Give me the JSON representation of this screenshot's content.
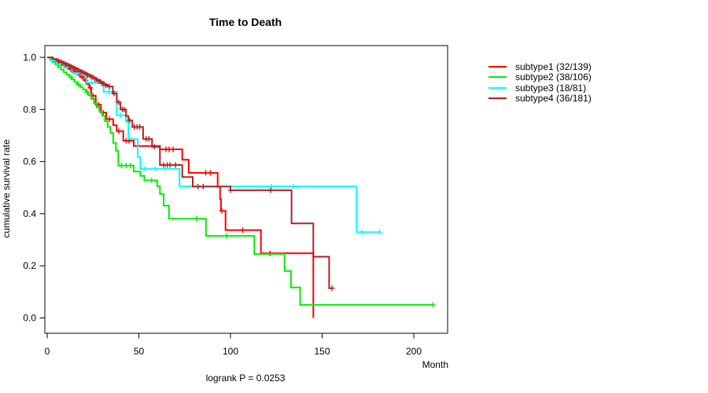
{
  "title": "Time to Death",
  "footer": "logrank P = 0.0253",
  "chart_data": {
    "type": "line",
    "variant": "kaplan-meier-step",
    "title": "Time to Death",
    "xlabel": "Month",
    "ylabel": "cumulative survival rate",
    "annotation": "logrank P = 0.0253",
    "xlim": [
      0,
      218
    ],
    "ylim": [
      0,
      1.04
    ],
    "x_ticks": [
      0,
      50,
      100,
      150,
      200
    ],
    "y_ticks": [
      1.0,
      0.8,
      0.6,
      0.4,
      0.2,
      0.0
    ],
    "y_tick_labels": [
      "1.0",
      "0.8",
      "0.6",
      "0.4",
      "0.2",
      "0.0"
    ],
    "grid": false,
    "legend_position": "right-outside",
    "series": [
      {
        "name": "subtype1",
        "label": "subtype1 (32/139)",
        "color": "#ff0000",
        "steps": [
          [
            0,
            1.0
          ],
          [
            2,
            0.993
          ],
          [
            4,
            0.986
          ],
          [
            6,
            0.978
          ],
          [
            8,
            0.97
          ],
          [
            10,
            0.962
          ],
          [
            12,
            0.954
          ],
          [
            14,
            0.946
          ],
          [
            16,
            0.938
          ],
          [
            18,
            0.925
          ],
          [
            20,
            0.912
          ],
          [
            21.5,
            0.898
          ],
          [
            22.9,
            0.883
          ],
          [
            24,
            0.853
          ],
          [
            26.5,
            0.818
          ],
          [
            29.3,
            0.788
          ],
          [
            32.2,
            0.763
          ],
          [
            36,
            0.74
          ],
          [
            37.9,
            0.717
          ],
          [
            41.5,
            0.68
          ],
          [
            47.2,
            0.66
          ],
          [
            61.5,
            0.647
          ],
          [
            73.7,
            0.607
          ],
          [
            77.2,
            0.557
          ],
          [
            93,
            0.503
          ],
          [
            94.3,
            0.456
          ],
          [
            94.8,
            0.411
          ],
          [
            97.3,
            0.337
          ],
          [
            116.6,
            0.248
          ],
          [
            145.2,
            0.0
          ]
        ],
        "censors": [
          [
            5,
            0.986
          ],
          [
            7,
            0.978
          ],
          [
            9,
            0.97
          ],
          [
            11,
            0.962
          ],
          [
            13,
            0.954
          ],
          [
            15,
            0.946
          ],
          [
            17,
            0.938
          ],
          [
            19,
            0.925
          ],
          [
            21,
            0.912
          ],
          [
            23.5,
            0.883
          ],
          [
            25,
            0.853
          ],
          [
            28,
            0.818
          ],
          [
            30.5,
            0.788
          ],
          [
            34,
            0.763
          ],
          [
            39,
            0.717
          ],
          [
            43,
            0.68
          ],
          [
            44.6,
            0.68
          ],
          [
            64.8,
            0.647
          ],
          [
            66.5,
            0.647
          ],
          [
            68.7,
            0.647
          ],
          [
            86.5,
            0.557
          ],
          [
            89,
            0.557
          ],
          [
            95.3,
            0.411
          ],
          [
            106.6,
            0.337
          ],
          [
            121.6,
            0.248
          ]
        ]
      },
      {
        "name": "subtype2",
        "label": "subtype2 (38/106)",
        "color": "#00ee00",
        "steps": [
          [
            0,
            1.0
          ],
          [
            1.5,
            0.991
          ],
          [
            3,
            0.981
          ],
          [
            4.5,
            0.972
          ],
          [
            6,
            0.962
          ],
          [
            7.5,
            0.953
          ],
          [
            9,
            0.943
          ],
          [
            10.5,
            0.934
          ],
          [
            12,
            0.924
          ],
          [
            13.5,
            0.915
          ],
          [
            15,
            0.905
          ],
          [
            16.5,
            0.896
          ],
          [
            18,
            0.886
          ],
          [
            19.5,
            0.877
          ],
          [
            21,
            0.867
          ],
          [
            22.5,
            0.855
          ],
          [
            24,
            0.84
          ],
          [
            25.5,
            0.824
          ],
          [
            27,
            0.808
          ],
          [
            28.5,
            0.792
          ],
          [
            30,
            0.776
          ],
          [
            31.5,
            0.755
          ],
          [
            33,
            0.733
          ],
          [
            34.5,
            0.71
          ],
          [
            36,
            0.672
          ],
          [
            37.5,
            0.642
          ],
          [
            38.8,
            0.585
          ],
          [
            47.2,
            0.562
          ],
          [
            50.8,
            0.545
          ],
          [
            53,
            0.528
          ],
          [
            60,
            0.506
          ],
          [
            61.5,
            0.476
          ],
          [
            63.5,
            0.431
          ],
          [
            66.5,
            0.381
          ],
          [
            86.6,
            0.315
          ],
          [
            113,
            0.245
          ],
          [
            129.5,
            0.18
          ],
          [
            133,
            0.117
          ],
          [
            138,
            0.05
          ],
          [
            210.5,
            0.05
          ]
        ],
        "censors": [
          [
            13,
            0.924
          ],
          [
            17,
            0.896
          ],
          [
            21.8,
            0.867
          ],
          [
            40.5,
            0.585
          ],
          [
            43,
            0.585
          ],
          [
            45.5,
            0.585
          ],
          [
            57,
            0.528
          ],
          [
            81.5,
            0.381
          ],
          [
            98,
            0.315
          ],
          [
            210.5,
            0.05
          ]
        ]
      },
      {
        "name": "subtype3",
        "label": "subtype3 (18/81)",
        "color": "#00ffff",
        "steps": [
          [
            0,
            1.0
          ],
          [
            2,
            0.988
          ],
          [
            5,
            0.976
          ],
          [
            9,
            0.964
          ],
          [
            13.6,
            0.939
          ],
          [
            21.5,
            0.903
          ],
          [
            30.8,
            0.868
          ],
          [
            37.9,
            0.778
          ],
          [
            42.9,
            0.753
          ],
          [
            44.3,
            0.687
          ],
          [
            49.4,
            0.617
          ],
          [
            50.8,
            0.572
          ],
          [
            72.2,
            0.505
          ],
          [
            168.8,
            0.329
          ],
          [
            181.4,
            0.329
          ]
        ],
        "censors": [
          [
            3.5,
            0.988
          ],
          [
            7,
            0.976
          ],
          [
            11,
            0.964
          ],
          [
            16,
            0.939
          ],
          [
            18.5,
            0.939
          ],
          [
            24.3,
            0.903
          ],
          [
            29.3,
            0.903
          ],
          [
            33.6,
            0.868
          ],
          [
            40,
            0.778
          ],
          [
            53,
            0.572
          ],
          [
            59,
            0.572
          ],
          [
            64.4,
            0.572
          ],
          [
            122.3,
            0.505
          ],
          [
            134.4,
            0.505
          ],
          [
            171.7,
            0.329
          ],
          [
            181.4,
            0.329
          ]
        ]
      },
      {
        "name": "subtype4",
        "label": "subtype4 (36/181)",
        "color": "#b22222",
        "steps": [
          [
            0,
            1.0
          ],
          [
            3,
            0.994
          ],
          [
            5,
            0.989
          ],
          [
            7,
            0.983
          ],
          [
            9,
            0.977
          ],
          [
            11,
            0.971
          ],
          [
            13,
            0.964
          ],
          [
            15,
            0.957
          ],
          [
            17,
            0.95
          ],
          [
            19,
            0.943
          ],
          [
            21,
            0.936
          ],
          [
            23,
            0.929
          ],
          [
            25,
            0.921
          ],
          [
            27,
            0.913
          ],
          [
            29,
            0.905
          ],
          [
            31,
            0.896
          ],
          [
            33,
            0.888
          ],
          [
            35.8,
            0.861
          ],
          [
            38,
            0.827
          ],
          [
            40,
            0.8
          ],
          [
            43,
            0.775
          ],
          [
            44.3,
            0.758
          ],
          [
            46.5,
            0.733
          ],
          [
            52.3,
            0.687
          ],
          [
            57.2,
            0.657
          ],
          [
            61.5,
            0.587
          ],
          [
            73.7,
            0.541
          ],
          [
            79.4,
            0.504
          ],
          [
            100,
            0.49
          ],
          [
            133.3,
            0.363
          ],
          [
            145.2,
            0.235
          ],
          [
            153.8,
            0.114
          ],
          [
            155.4,
            0.114
          ]
        ],
        "censors": [
          [
            6,
            0.986
          ],
          [
            8,
            0.98
          ],
          [
            10,
            0.974
          ],
          [
            12,
            0.967
          ],
          [
            14,
            0.96
          ],
          [
            16,
            0.953
          ],
          [
            18,
            0.946
          ],
          [
            20,
            0.94
          ],
          [
            22,
            0.932
          ],
          [
            24,
            0.925
          ],
          [
            26,
            0.917
          ],
          [
            28,
            0.909
          ],
          [
            30,
            0.9
          ],
          [
            32,
            0.892
          ],
          [
            34,
            0.888
          ],
          [
            36.5,
            0.861
          ],
          [
            39,
            0.827
          ],
          [
            41,
            0.8
          ],
          [
            42,
            0.8
          ],
          [
            45,
            0.758
          ],
          [
            47.5,
            0.733
          ],
          [
            49,
            0.733
          ],
          [
            50.5,
            0.733
          ],
          [
            54,
            0.687
          ],
          [
            55.5,
            0.687
          ],
          [
            58.5,
            0.657
          ],
          [
            63.5,
            0.587
          ],
          [
            65.5,
            0.587
          ],
          [
            67,
            0.587
          ],
          [
            70,
            0.587
          ],
          [
            82.3,
            0.504
          ],
          [
            85.1,
            0.504
          ],
          [
            100.1,
            0.49
          ],
          [
            121.9,
            0.49
          ],
          [
            155.4,
            0.114
          ]
        ]
      }
    ]
  }
}
